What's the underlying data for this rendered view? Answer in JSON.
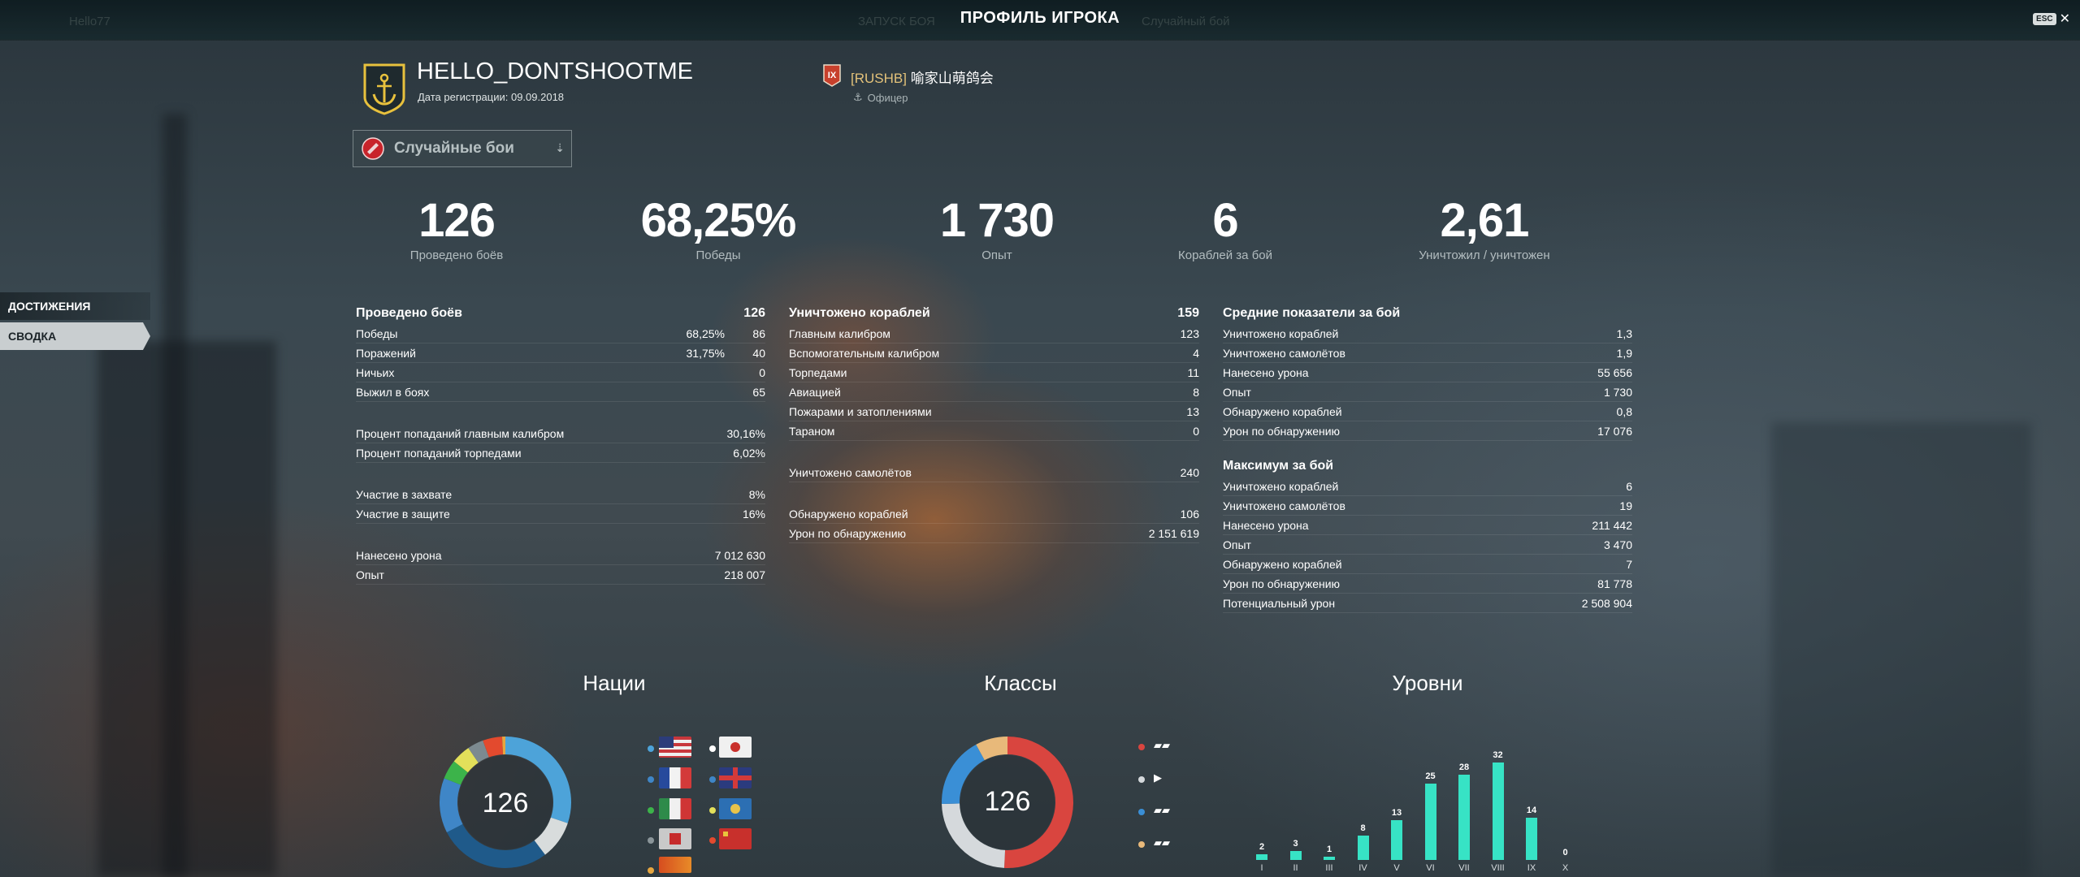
{
  "topbar": {
    "title": "ПРОФИЛЬ ИГРОКА",
    "esc": "ESC",
    "close": "✕",
    "ghost_left": "Hello77",
    "ghost_mid1": "ЗАПУСК БОЯ",
    "ghost_mid2": "Случайный бой"
  },
  "player": {
    "nickname": "HELLO_DONTSHOOTME",
    "reg_date": "Дата регистрации: 09.09.2018"
  },
  "clan": {
    "badge": "IX",
    "tag": "[RUSHB]",
    "name": "喻家山萌鸽会",
    "role": "Офицер"
  },
  "mode_select": {
    "label": "Случайные бои",
    "arrow": "⇣"
  },
  "sidebar": {
    "items": [
      {
        "label": "ДОСТИЖЕНИЯ"
      },
      {
        "label": "СВОДКА"
      }
    ]
  },
  "summary": [
    {
      "value": "126",
      "label": "Проведено боёв"
    },
    {
      "value": "68,25%",
      "label": "Победы"
    },
    {
      "value": "1 730",
      "label": "Опыт"
    },
    {
      "value": "6",
      "label": "Кораблей за бой"
    },
    {
      "value": "2,61",
      "label": "Уничтожил / уничтожен"
    }
  ],
  "col1": {
    "head": {
      "name": "Проведено боёв",
      "value": "126"
    },
    "group1": [
      {
        "name": "Победы",
        "pct": "68,25%",
        "value": "86"
      },
      {
        "name": "Поражений",
        "pct": "31,75%",
        "value": "40"
      },
      {
        "name": "Ничьих",
        "pct": "",
        "value": "0"
      },
      {
        "name": "Выжил в боях",
        "pct": "",
        "value": "65"
      }
    ],
    "group2": [
      {
        "name": "Процент попаданий главным калибром",
        "value": "30,16%"
      },
      {
        "name": "Процент попаданий торпедами",
        "value": "6,02%"
      }
    ],
    "group3": [
      {
        "name": "Участие в захвате",
        "value": "8%"
      },
      {
        "name": "Участие в защите",
        "value": "16%"
      }
    ],
    "group4": [
      {
        "name": "Нанесено урона",
        "value": "7 012 630"
      },
      {
        "name": "Опыт",
        "value": "218 007"
      }
    ]
  },
  "col2": {
    "head": {
      "name": "Уничтожено кораблей",
      "value": "159"
    },
    "group1": [
      {
        "name": "Главным калибром",
        "value": "123"
      },
      {
        "name": "Вспомогательным калибром",
        "value": "4"
      },
      {
        "name": "Торпедами",
        "value": "11"
      },
      {
        "name": "Авиацией",
        "value": "8"
      },
      {
        "name": "Пожарами и затоплениями",
        "value": "13"
      },
      {
        "name": "Тараном",
        "value": "0"
      }
    ],
    "group2": [
      {
        "name": "Уничтожено самолётов",
        "value": "240"
      }
    ],
    "group3": [
      {
        "name": "Обнаружено кораблей",
        "value": "106"
      },
      {
        "name": "Урон по обнаружению",
        "value": "2 151 619"
      }
    ]
  },
  "col3": {
    "head1": {
      "name": "Средние показатели за бой"
    },
    "avg": [
      {
        "name": "Уничтожено кораблей",
        "value": "1,3"
      },
      {
        "name": "Уничтожено самолётов",
        "value": "1,9"
      },
      {
        "name": "Нанесено урона",
        "value": "55 656"
      },
      {
        "name": "Опыт",
        "value": "1 730"
      },
      {
        "name": "Обнаружено кораблей",
        "value": "0,8"
      },
      {
        "name": "Урон по обнаружению",
        "value": "17 076"
      }
    ],
    "head2": {
      "name": "Максимум за бой"
    },
    "max": [
      {
        "name": "Уничтожено кораблей",
        "value": "6"
      },
      {
        "name": "Уничтожено самолётов",
        "value": "19"
      },
      {
        "name": "Нанесено урона",
        "value": "211 442"
      },
      {
        "name": "Опыт",
        "value": "3 470"
      },
      {
        "name": "Обнаружено кораблей",
        "value": "7"
      },
      {
        "name": "Урон по обнаружению",
        "value": "81 778"
      },
      {
        "name": "Потенциальный урон",
        "value": "2 508 904"
      }
    ]
  },
  "charts": {
    "nations_title": "Нации",
    "classes_title": "Классы",
    "tiers_title": "Уровни",
    "nations_total": "126",
    "classes_total": "126"
  },
  "colors": {
    "accent_bar": "#37e3c5",
    "donut_bg": "#2b3438"
  },
  "chart_data": [
    {
      "type": "pie",
      "title": "Нации",
      "center_label": "126",
      "slices": [
        {
          "color": "#4da3d9",
          "value": 38
        },
        {
          "color": "#d8dcdc",
          "value": 12
        },
        {
          "color": "#1f5a8a",
          "value": 35
        },
        {
          "color": "#3f86c7",
          "value": 17
        },
        {
          "color": "#3cb34a",
          "value": 6
        },
        {
          "color": "#e3e05a",
          "value": 6
        },
        {
          "color": "#7c8a90",
          "value": 5
        },
        {
          "color": "#e34a2e",
          "value": 6
        },
        {
          "color": "#e6a640",
          "value": 1
        }
      ],
      "legend_colors": [
        "#4da3d9",
        "#ffffff",
        "#3f86c7",
        "#3f86c7",
        "#3cb34a",
        "#e3e05a",
        "#8a9599",
        "#e34a2e",
        "#e6a640"
      ]
    },
    {
      "type": "pie",
      "title": "Классы",
      "center_label": "126",
      "slices": [
        {
          "color": "#d9453f",
          "value": 64
        },
        {
          "color": "#d5d9dc",
          "value": 30
        },
        {
          "color": "#3a8fd6",
          "value": 22
        },
        {
          "color": "#e8b97a",
          "value": 10
        }
      ],
      "legend_colors": [
        "#d9453f",
        "#d5d9dc",
        "#3a8fd6",
        "#e8b97a"
      ],
      "legend_icons": [
        "▰▰",
        "▶",
        "▰▰",
        "▰▰"
      ]
    },
    {
      "type": "bar",
      "title": "Уровни",
      "categories": [
        "I",
        "II",
        "III",
        "IV",
        "V",
        "VI",
        "VII",
        "VIII",
        "IX",
        "X"
      ],
      "values": [
        2,
        3,
        1,
        8,
        13,
        25,
        28,
        32,
        14,
        0
      ]
    }
  ]
}
